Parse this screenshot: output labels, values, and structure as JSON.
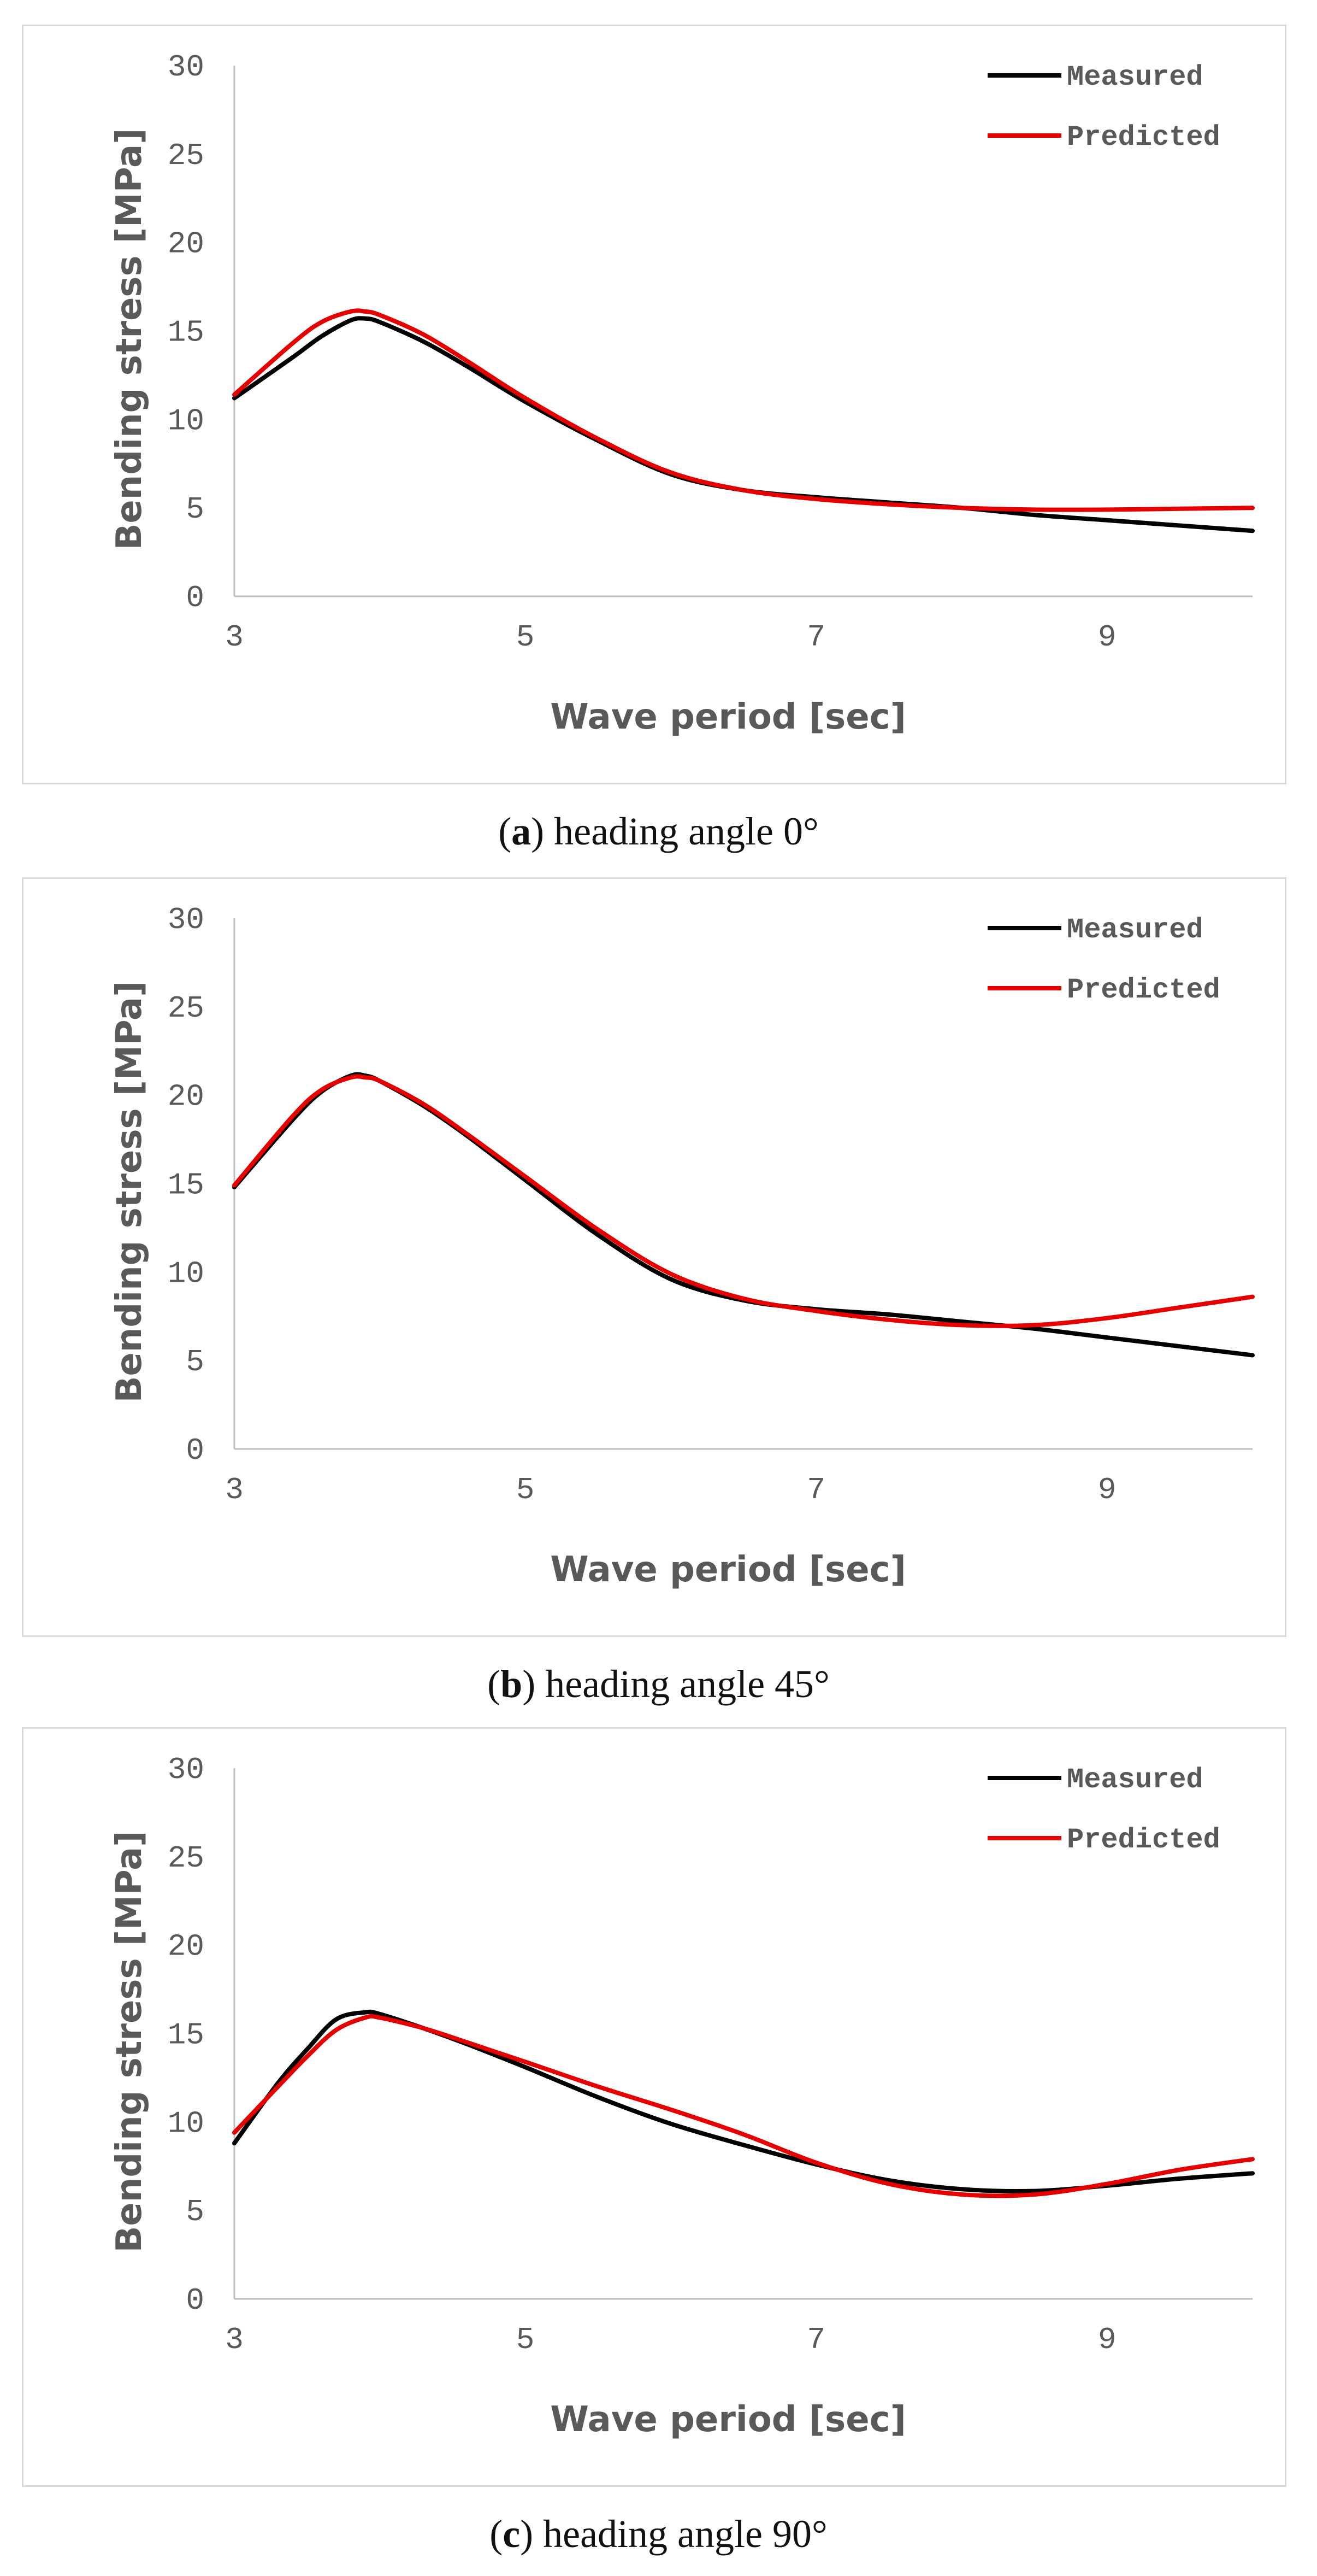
{
  "chart_data": [
    {
      "type": "line",
      "panel_label": "a",
      "caption": "heading angle 0°",
      "xlabel": "Wave period [sec]",
      "ylabel": "Bending stress [MPa]",
      "xlim": [
        3,
        10
      ],
      "ylim": [
        0,
        30
      ],
      "xticks": [
        3,
        5,
        7,
        9
      ],
      "yticks": [
        0,
        5,
        10,
        15,
        20,
        25,
        30
      ],
      "legend_position": "top-right",
      "series": [
        {
          "name": "Measured",
          "color": "#000000",
          "x": [
            3,
            3.4,
            3.6,
            3.8,
            3.9,
            4.0,
            4.3,
            4.6,
            5.0,
            5.5,
            6.0,
            6.5,
            7.0,
            7.5,
            8.0,
            8.5,
            9.0,
            9.5,
            10
          ],
          "y": [
            11.2,
            13.5,
            14.7,
            15.6,
            15.7,
            15.5,
            14.4,
            13.0,
            11.0,
            8.8,
            6.9,
            6.0,
            5.6,
            5.3,
            5.0,
            4.6,
            4.3,
            4.0,
            3.7
          ]
        },
        {
          "name": "Predicted",
          "color": "#e60000",
          "x": [
            3,
            3.4,
            3.6,
            3.8,
            3.9,
            4.0,
            4.3,
            4.6,
            5.0,
            5.5,
            6.0,
            6.5,
            7.0,
            7.5,
            8.0,
            8.5,
            9.0,
            9.5,
            10
          ],
          "y": [
            11.4,
            14.3,
            15.5,
            16.1,
            16.1,
            15.9,
            14.8,
            13.3,
            11.2,
            8.9,
            7.0,
            6.0,
            5.5,
            5.2,
            5.0,
            4.9,
            4.9,
            4.95,
            5.0
          ]
        }
      ]
    },
    {
      "type": "line",
      "panel_label": "b",
      "caption": "heading angle 45°",
      "xlabel": "Wave period [sec]",
      "ylabel": "Bending stress [MPa]",
      "xlim": [
        3,
        10
      ],
      "ylim": [
        0,
        30
      ],
      "xticks": [
        3,
        5,
        7,
        9
      ],
      "yticks": [
        0,
        5,
        10,
        15,
        20,
        25,
        30
      ],
      "legend_position": "top-right",
      "series": [
        {
          "name": "Measured",
          "color": "#000000",
          "x": [
            3,
            3.4,
            3.6,
            3.8,
            3.9,
            4.0,
            4.3,
            4.6,
            5.0,
            5.5,
            6.0,
            6.5,
            7.0,
            7.5,
            8.0,
            8.5,
            9.0,
            9.5,
            10
          ],
          "y": [
            14.8,
            18.6,
            20.2,
            21.1,
            21.1,
            20.8,
            19.4,
            17.7,
            15.2,
            12.1,
            9.6,
            8.4,
            7.9,
            7.6,
            7.2,
            6.8,
            6.3,
            5.8,
            5.3
          ]
        },
        {
          "name": "Predicted",
          "color": "#e60000",
          "x": [
            3,
            3.4,
            3.6,
            3.8,
            3.9,
            4.0,
            4.3,
            4.6,
            5.0,
            5.5,
            6.0,
            6.5,
            7.0,
            7.5,
            8.0,
            8.5,
            9.0,
            9.5,
            10
          ],
          "y": [
            14.9,
            18.8,
            20.3,
            21.0,
            21.0,
            20.8,
            19.5,
            17.8,
            15.4,
            12.4,
            9.9,
            8.5,
            7.8,
            7.3,
            7.0,
            7.0,
            7.4,
            8.0,
            8.6
          ]
        }
      ]
    },
    {
      "type": "line",
      "panel_label": "c",
      "caption": "heading angle 90°",
      "xlabel": "Wave period [sec]",
      "ylabel": "Bending stress [MPa]",
      "xlim": [
        3,
        10
      ],
      "ylim": [
        0,
        30
      ],
      "xticks": [
        3,
        5,
        7,
        9
      ],
      "yticks": [
        0,
        5,
        10,
        15,
        20,
        25,
        30
      ],
      "legend_position": "top-right",
      "series": [
        {
          "name": "Measured",
          "color": "#000000",
          "x": [
            3,
            3.3,
            3.5,
            3.7,
            3.9,
            4.0,
            4.3,
            4.6,
            5.0,
            5.5,
            6.0,
            6.5,
            7.0,
            7.5,
            8.0,
            8.5,
            9.0,
            9.5,
            10
          ],
          "y": [
            8.8,
            12.2,
            14.1,
            15.8,
            16.2,
            16.1,
            15.3,
            14.4,
            13.1,
            11.4,
            9.9,
            8.7,
            7.6,
            6.7,
            6.2,
            6.1,
            6.4,
            6.8,
            7.1
          ]
        },
        {
          "name": "Predicted",
          "color": "#e60000",
          "x": [
            3,
            3.3,
            3.5,
            3.7,
            3.9,
            4.0,
            4.3,
            4.6,
            5.0,
            5.5,
            6.0,
            6.5,
            7.0,
            7.5,
            8.0,
            8.5,
            9.0,
            9.5,
            10
          ],
          "y": [
            9.4,
            12.0,
            13.7,
            15.2,
            15.9,
            15.9,
            15.3,
            14.5,
            13.4,
            12.0,
            10.7,
            9.3,
            7.7,
            6.5,
            5.9,
            5.9,
            6.5,
            7.3,
            7.9
          ]
        }
      ]
    }
  ]
}
